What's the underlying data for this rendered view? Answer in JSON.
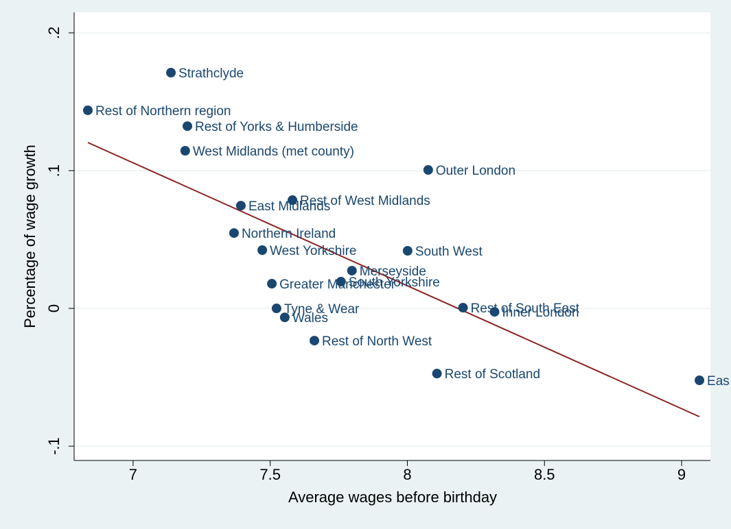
{
  "chart_data": {
    "type": "scatter",
    "xlabel": "Average wages before birthday",
    "ylabel": "Percentage of wage growth",
    "labels": [
      "Strathclyde",
      "Rest of Northern region",
      "Rest of Yorks & Humberside",
      "West Midlands (met county)",
      "Outer London",
      "East Midlands",
      "Rest of West Midlands",
      "Northern Ireland",
      "West Yorkshire",
      "South West",
      "Merseyside",
      "Greater Manchester",
      "South Yorkshire",
      "Tyne & Wear",
      "Wales",
      "Rest of South East",
      "Inner London",
      "Rest of North West",
      "Rest of Scotland",
      "Eas"
    ],
    "x": [
      7.138,
      6.835,
      7.198,
      7.19,
      8.076,
      7.393,
      7.581,
      7.368,
      7.471,
      8.001,
      7.798,
      7.506,
      7.758,
      7.523,
      7.553,
      8.203,
      8.318,
      7.661,
      8.108,
      9.065
    ],
    "values": [
      0.1711,
      0.1438,
      0.1323,
      0.1144,
      0.1005,
      0.0746,
      0.0786,
      0.0547,
      0.0423,
      0.0418,
      0.0274,
      0.0179,
      0.0194,
      0.0,
      -0.0065,
      0.0005,
      -0.0025,
      -0.0234,
      -0.0473,
      -0.0522
    ],
    "color": "#1a476f",
    "fit": {
      "x": [
        6.835,
        9.065
      ],
      "y": [
        0.1204,
        -0.0786
      ],
      "color": "#8b2323"
    },
    "xlim": [
      6.785,
      9.105
    ],
    "ylim": [
      -0.1104,
      0.2149
    ],
    "xticks": [
      7,
      7.5,
      8,
      8.5,
      9
    ],
    "yticks": [
      {
        "value": -0.1,
        "label": "-.1"
      },
      0,
      {
        "value": 0.1,
        "label": ".1"
      },
      {
        "value": 0.2,
        "label": ".2"
      }
    ],
    "grid": true
  }
}
